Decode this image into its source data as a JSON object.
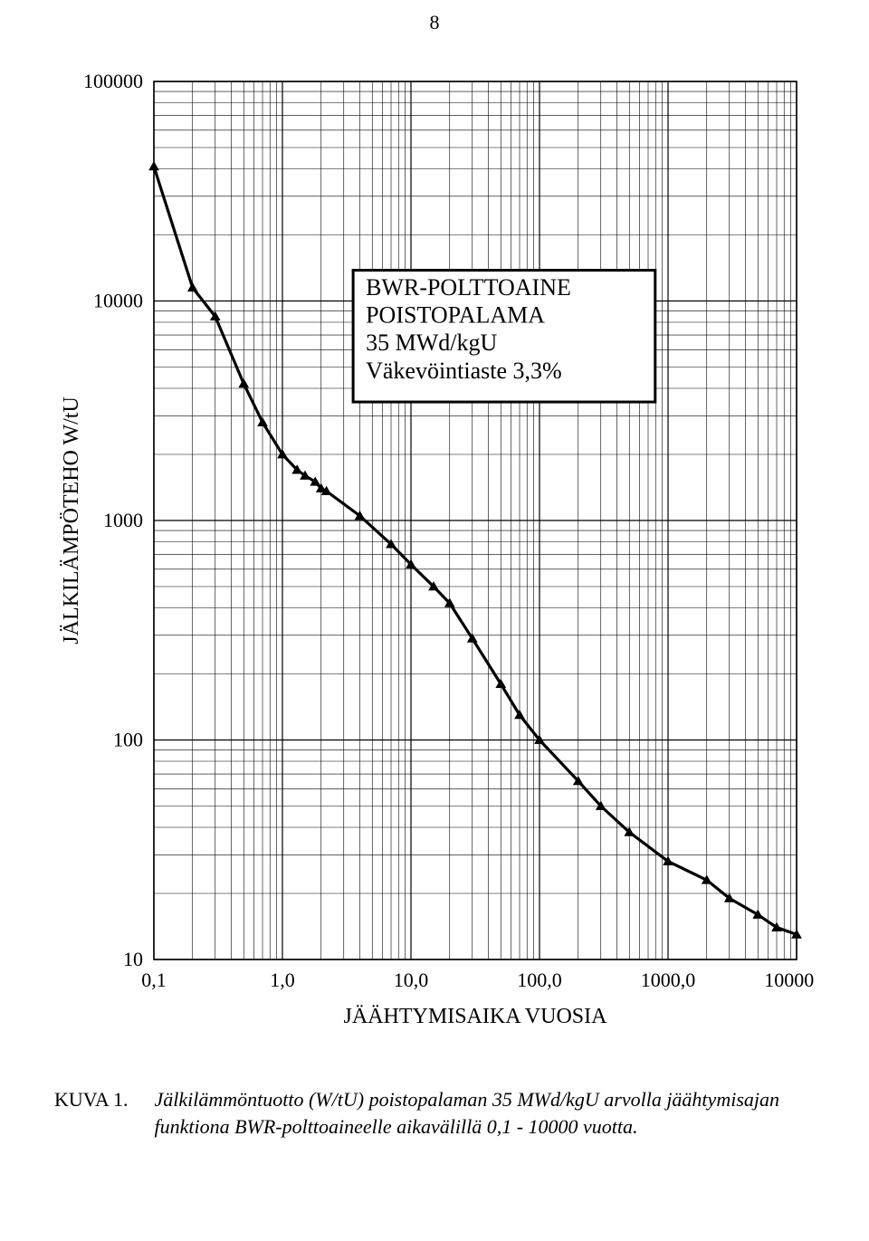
{
  "page_number": "8",
  "chart": {
    "type": "line",
    "ylabel": "JÄLKILÄMPÖTEHO W/tU",
    "xlabel": "JÄÄHTYMISAIKA VUOSIA",
    "xticks": [
      "0,1",
      "1,0",
      "10,0",
      "100,0",
      "1000,0",
      "10000,0"
    ],
    "yticks": [
      "10",
      "100",
      "1000",
      "10000",
      "100000"
    ],
    "x_log_min": -1,
    "x_log_max": 4,
    "y_log_min": 1,
    "y_log_max": 5,
    "background_color": "#ffffff",
    "grid_color": "#000000",
    "grid_width_major": 1.2,
    "grid_width_minor": 0.6,
    "line_color": "#000000",
    "line_width": 3.2,
    "marker_color": "#000000",
    "marker_size": 9,
    "marker_shape": "triangle",
    "label_fontsize": 24,
    "tick_fontsize": 22,
    "data": [
      {
        "x": 0.1,
        "y": 41000
      },
      {
        "x": 0.2,
        "y": 11500
      },
      {
        "x": 0.3,
        "y": 8500
      },
      {
        "x": 0.5,
        "y": 4200
      },
      {
        "x": 0.7,
        "y": 2800
      },
      {
        "x": 1.0,
        "y": 2000
      },
      {
        "x": 1.3,
        "y": 1700
      },
      {
        "x": 1.5,
        "y": 1600
      },
      {
        "x": 1.8,
        "y": 1500
      },
      {
        "x": 2.0,
        "y": 1400
      },
      {
        "x": 2.2,
        "y": 1360
      },
      {
        "x": 4.0,
        "y": 1050
      },
      {
        "x": 7.0,
        "y": 780
      },
      {
        "x": 10.0,
        "y": 630
      },
      {
        "x": 15.0,
        "y": 500
      },
      {
        "x": 20.0,
        "y": 420
      },
      {
        "x": 30.0,
        "y": 290
      },
      {
        "x": 50.0,
        "y": 180
      },
      {
        "x": 70.0,
        "y": 130
      },
      {
        "x": 100.0,
        "y": 100
      },
      {
        "x": 200.0,
        "y": 65
      },
      {
        "x": 300.0,
        "y": 50
      },
      {
        "x": 500.0,
        "y": 38
      },
      {
        "x": 1000.0,
        "y": 28
      },
      {
        "x": 2000.0,
        "y": 23
      },
      {
        "x": 3000.0,
        "y": 19
      },
      {
        "x": 5000.0,
        "y": 16
      },
      {
        "x": 7000.0,
        "y": 14
      },
      {
        "x": 10000.0,
        "y": 13
      }
    ],
    "inset_box": {
      "lines": [
        "BWR-POLTTOAINE",
        "POISTOPALAMA",
        "35 MWd/kgU",
        "Väkevöintiaste 3,3%"
      ],
      "font_size": 26,
      "border_color": "#000000",
      "border_width": 3,
      "background": "#ffffff",
      "x_log": 0.55,
      "y_log": 4.14,
      "width_log": 2.35,
      "height_log": 0.6
    }
  },
  "caption": {
    "label": "KUVA 1.",
    "text": "Jälkilämmöntuotto (W/tU) poistopalaman 35 MWd/kgU arvolla jäähtymisajan funktiona BWR-polttoaineelle aikavälillä 0,1 - 10000 vuotta."
  }
}
